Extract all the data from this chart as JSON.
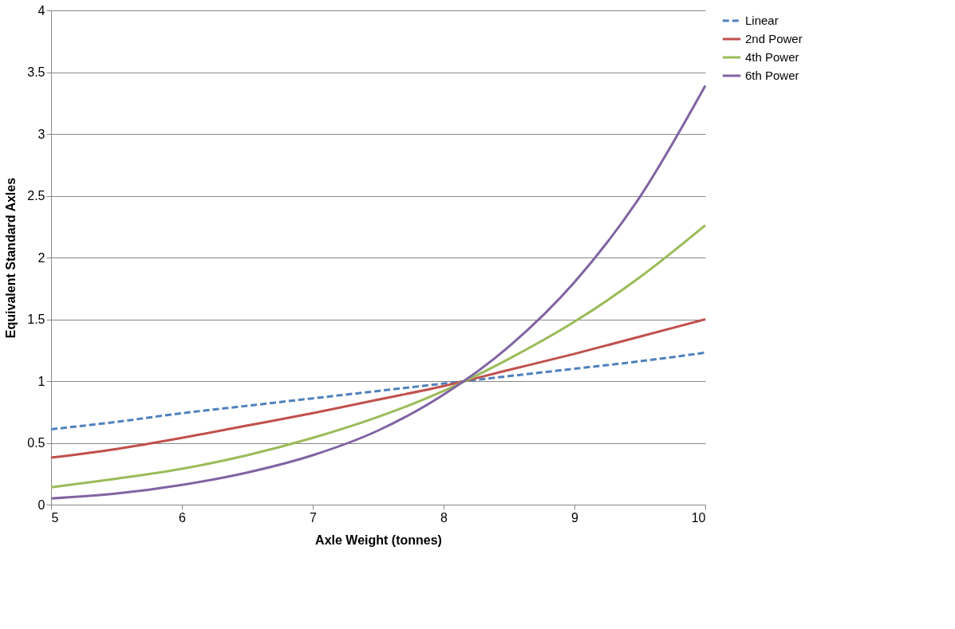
{
  "chart_data": {
    "type": "line",
    "xlabel": "Axle Weight (tonnes)",
    "ylabel": "Equivalent Standard Axles",
    "x": [
      5,
      5.5,
      6,
      6.5,
      7,
      7.5,
      8,
      8.5,
      9,
      9.5,
      10
    ],
    "series": [
      {
        "name": "Linear",
        "color": "#4f81bd",
        "line_style": "dashed",
        "values": [
          0.61,
          0.67,
          0.74,
          0.8,
          0.86,
          0.92,
          0.98,
          1.04,
          1.1,
          1.16,
          1.23
        ]
      },
      {
        "name": "2nd Power",
        "color": "#c0504d",
        "line_style": "solid",
        "values": [
          0.38,
          0.45,
          0.54,
          0.64,
          0.74,
          0.85,
          0.96,
          1.09,
          1.22,
          1.36,
          1.5
        ]
      },
      {
        "name": "4th Power",
        "color": "#9bbb59",
        "line_style": "solid",
        "values": [
          0.14,
          0.21,
          0.29,
          0.4,
          0.54,
          0.71,
          0.92,
          1.18,
          1.48,
          1.84,
          2.26
        ]
      },
      {
        "name": "6th Power",
        "color": "#8064a2",
        "line_style": "solid",
        "values": [
          0.05,
          0.09,
          0.16,
          0.26,
          0.4,
          0.6,
          0.89,
          1.28,
          1.8,
          2.49,
          3.39
        ]
      }
    ],
    "xlim": [
      5,
      10
    ],
    "xticks": [
      5,
      6,
      7,
      8,
      9,
      10
    ],
    "ylim": [
      0,
      4
    ],
    "yticks": [
      0,
      0.5,
      1,
      1.5,
      2,
      2.5,
      3,
      3.5,
      4
    ],
    "grid": "y",
    "legend": "right",
    "marker": "none"
  }
}
